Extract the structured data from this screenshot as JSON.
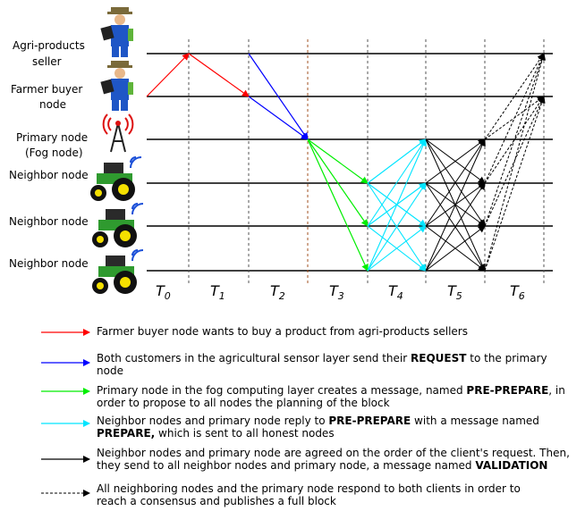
{
  "nodes": {
    "seller": [
      "Agri-products",
      "seller"
    ],
    "buyer": [
      "Farmer buyer",
      "node"
    ],
    "primary": [
      "Primary node",
      "(Fog node)"
    ],
    "neighbor1": [
      "Neighbor node"
    ],
    "neighbor2": [
      "Neighbor node"
    ],
    "neighbor3": [
      "Neighbor node"
    ]
  },
  "time_labels": [
    {
      "main": "T",
      "sub": "0"
    },
    {
      "main": "T",
      "sub": "1"
    },
    {
      "main": "T",
      "sub": "2"
    },
    {
      "main": "T",
      "sub": "3"
    },
    {
      "main": "T",
      "sub": "4"
    },
    {
      "main": "T",
      "sub": "5"
    },
    {
      "main": "T",
      "sub": "6"
    }
  ],
  "colors": {
    "red": "#ff0000",
    "blue": "#0000ff",
    "green": "#00ee00",
    "cyan": "#00e5ff",
    "black": "#000000"
  },
  "icons": {
    "seller": "farmer-icon",
    "buyer": "farmer-icon",
    "primary": "antenna-tower-icon",
    "neighbors": "tractor-icon"
  },
  "legend": [
    {
      "color": "red",
      "style": "solid",
      "line1": "Farmer buyer node wants to buy a product from agri-products sellers",
      "line2": ""
    },
    {
      "color": "blue",
      "style": "solid",
      "line1": "Both customers in the agricultural sensor layer send their REQUEST to the primary",
      "line2": "node"
    },
    {
      "color": "green",
      "style": "solid",
      "line1": "Primary node in the fog computing layer creates a message, named PRE-PREPARE, in",
      "line2": "order to propose to all nodes the planning of the block"
    },
    {
      "color": "cyan",
      "style": "solid",
      "line1": "Neighbor nodes and primary node reply to PRE-PREPARE with a message named",
      "line2": "PREPARE, which is sent to all honest nodes"
    },
    {
      "color": "black",
      "style": "solid",
      "line1": "Neighbor nodes and primary node are agreed on the order of the client's request. Then,",
      "line2": "they send to all neighbor nodes and primary node, a message named VALIDATION"
    },
    {
      "color": "black",
      "style": "dashed",
      "line1": "All neighboring nodes and the primary node respond to both clients in order to",
      "line2": "reach a consensus and publishes a full block"
    }
  ]
}
